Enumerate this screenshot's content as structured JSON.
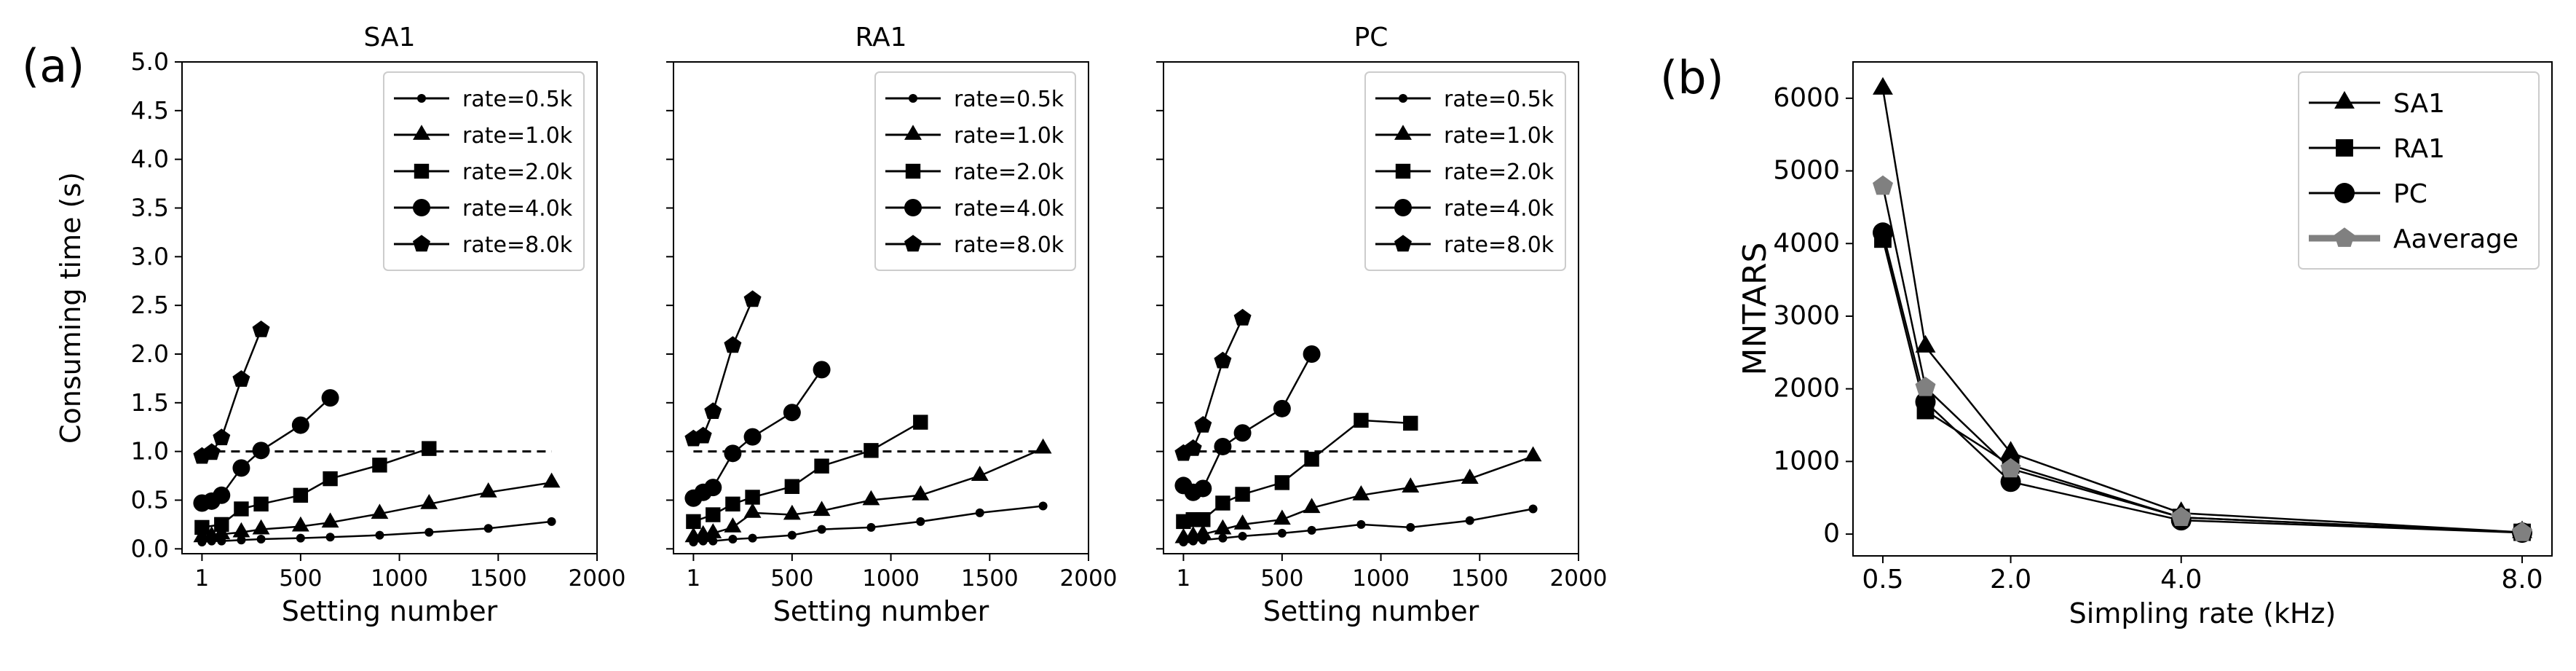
{
  "panel_labels": {
    "a": "(a)",
    "b": "(b)"
  },
  "chart_data": [
    {
      "type": "line",
      "title": "SA1",
      "xlabel": "Setting number",
      "ylabel": "Consuming  time (s)",
      "xlim": [
        -100,
        2000
      ],
      "ylim": [
        -0.05,
        5.0
      ],
      "xticks": [
        1,
        500,
        1000,
        1500,
        2000
      ],
      "yticks": [
        0.0,
        0.5,
        1.0,
        1.5,
        2.0,
        2.5,
        3.0,
        3.5,
        4.0,
        4.5,
        5.0
      ],
      "legend_position": "upper-right",
      "reference_line": {
        "y": 1.0,
        "x_range": [
          1,
          1770
        ],
        "style": "dashed"
      },
      "series": [
        {
          "name": "rate=0.5k",
          "marker": "small-dot",
          "x": [
            1,
            50,
            100,
            200,
            300,
            500,
            650,
            900,
            1150,
            1450,
            1770
          ],
          "y": [
            0.07,
            0.08,
            0.08,
            0.09,
            0.1,
            0.11,
            0.12,
            0.14,
            0.17,
            0.21,
            0.28
          ]
        },
        {
          "name": "rate=1.0k",
          "marker": "triangle",
          "x": [
            1,
            50,
            100,
            200,
            300,
            500,
            650,
            900,
            1150,
            1450,
            1770
          ],
          "y": [
            0.12,
            0.13,
            0.15,
            0.17,
            0.2,
            0.23,
            0.27,
            0.36,
            0.46,
            0.58,
            0.68
          ]
        },
        {
          "name": "rate=2.0k",
          "marker": "square",
          "x": [
            1,
            100,
            200,
            300,
            500,
            650,
            900,
            1150
          ],
          "y": [
            0.22,
            0.25,
            0.41,
            0.46,
            0.55,
            0.72,
            0.86,
            1.03
          ]
        },
        {
          "name": "rate=4.0k",
          "marker": "circle",
          "x": [
            1,
            50,
            100,
            200,
            300,
            500,
            650
          ],
          "y": [
            0.47,
            0.49,
            0.55,
            0.83,
            1.01,
            1.27,
            1.55
          ]
        },
        {
          "name": "rate=8.0k",
          "marker": "pentagon",
          "x": [
            1,
            50,
            100,
            200,
            300
          ],
          "y": [
            0.95,
            0.99,
            1.14,
            1.74,
            2.25
          ]
        }
      ]
    },
    {
      "type": "line",
      "title": "RA1",
      "xlabel": "Setting number",
      "ylabel": "",
      "xlim": [
        -100,
        2000
      ],
      "ylim": [
        -0.05,
        5.0
      ],
      "xticks": [
        1,
        500,
        1000,
        1500,
        2000
      ],
      "yticks": [
        0.0,
        0.5,
        1.0,
        1.5,
        2.0,
        2.5,
        3.0,
        3.5,
        4.0,
        4.5,
        5.0
      ],
      "legend_position": "upper-right",
      "reference_line": {
        "y": 1.0,
        "x_range": [
          1,
          1770
        ],
        "style": "dashed"
      },
      "series": [
        {
          "name": "rate=0.5k",
          "marker": "small-dot",
          "x": [
            1,
            50,
            100,
            200,
            300,
            500,
            650,
            900,
            1150,
            1450,
            1770
          ],
          "y": [
            0.07,
            0.08,
            0.08,
            0.1,
            0.11,
            0.14,
            0.2,
            0.22,
            0.28,
            0.37,
            0.44
          ]
        },
        {
          "name": "rate=1.0k",
          "marker": "triangle",
          "x": [
            1,
            50,
            100,
            200,
            300,
            500,
            650,
            900,
            1150,
            1450,
            1770
          ],
          "y": [
            0.12,
            0.14,
            0.16,
            0.22,
            0.37,
            0.35,
            0.39,
            0.5,
            0.55,
            0.75,
            1.03
          ]
        },
        {
          "name": "rate=2.0k",
          "marker": "square",
          "x": [
            1,
            100,
            200,
            300,
            500,
            650,
            900,
            1150
          ],
          "y": [
            0.28,
            0.35,
            0.46,
            0.53,
            0.64,
            0.85,
            1.01,
            1.3
          ]
        },
        {
          "name": "rate=4.0k",
          "marker": "circle",
          "x": [
            1,
            50,
            100,
            200,
            300,
            500,
            650
          ],
          "y": [
            0.52,
            0.58,
            0.63,
            0.98,
            1.15,
            1.4,
            1.84
          ]
        },
        {
          "name": "rate=8.0k",
          "marker": "pentagon",
          "x": [
            1,
            50,
            100,
            200,
            300
          ],
          "y": [
            1.13,
            1.16,
            1.41,
            2.09,
            2.56
          ]
        }
      ]
    },
    {
      "type": "line",
      "title": "PC",
      "xlabel": "Setting number",
      "ylabel": "",
      "xlim": [
        -100,
        2000
      ],
      "ylim": [
        -0.05,
        5.0
      ],
      "xticks": [
        1,
        500,
        1000,
        1500,
        2000
      ],
      "yticks": [
        0.0,
        0.5,
        1.0,
        1.5,
        2.0,
        2.5,
        3.0,
        3.5,
        4.0,
        4.5,
        5.0
      ],
      "legend_position": "upper-right",
      "reference_line": {
        "y": 1.0,
        "x_range": [
          1,
          1770
        ],
        "style": "dashed"
      },
      "series": [
        {
          "name": "rate=0.5k",
          "marker": "small-dot",
          "x": [
            1,
            50,
            100,
            200,
            300,
            500,
            650,
            900,
            1150,
            1450,
            1770
          ],
          "y": [
            0.07,
            0.08,
            0.09,
            0.11,
            0.13,
            0.16,
            0.19,
            0.25,
            0.22,
            0.29,
            0.41
          ]
        },
        {
          "name": "rate=1.0k",
          "marker": "triangle",
          "x": [
            1,
            50,
            100,
            200,
            300,
            500,
            650,
            900,
            1150,
            1450,
            1770
          ],
          "y": [
            0.11,
            0.13,
            0.15,
            0.2,
            0.25,
            0.3,
            0.42,
            0.55,
            0.63,
            0.72,
            0.95
          ]
        },
        {
          "name": "rate=2.0k",
          "marker": "square",
          "x": [
            1,
            50,
            100,
            200,
            300,
            500,
            650,
            900,
            1150
          ],
          "y": [
            0.28,
            0.3,
            0.3,
            0.47,
            0.56,
            0.68,
            0.92,
            1.32,
            1.29
          ]
        },
        {
          "name": "rate=4.0k",
          "marker": "circle",
          "x": [
            1,
            50,
            100,
            200,
            300,
            500,
            650
          ],
          "y": [
            0.65,
            0.58,
            0.62,
            1.05,
            1.19,
            1.44,
            2.0
          ]
        },
        {
          "name": "rate=8.0k",
          "marker": "pentagon",
          "x": [
            1,
            50,
            100,
            200,
            300
          ],
          "y": [
            0.98,
            1.03,
            1.27,
            1.93,
            2.37
          ]
        }
      ]
    },
    {
      "type": "line",
      "title": "",
      "xlabel": "Simpling rate (kHz)",
      "ylabel": "MNTARS",
      "xlim": [
        0.15,
        8.35
      ],
      "ylim": [
        -300,
        6500
      ],
      "xticks": [
        0.5,
        2.0,
        4.0,
        8.0
      ],
      "xtick_labels": [
        "0.5",
        "2.0",
        "4.0",
        "8.0"
      ],
      "yticks": [
        0,
        1000,
        2000,
        3000,
        4000,
        5000,
        6000
      ],
      "legend_position": "upper-right",
      "series": [
        {
          "name": "SA1",
          "marker": "triangle",
          "color": "#000000",
          "x": [
            0.5,
            1.0,
            2.0,
            4.0,
            8.0
          ],
          "y": [
            6130,
            2580,
            1120,
            290,
            25
          ]
        },
        {
          "name": "RA1",
          "marker": "square",
          "color": "#000000",
          "x": [
            0.5,
            1.0,
            2.0,
            4.0,
            8.0
          ],
          "y": [
            4060,
            1700,
            950,
            230,
            25
          ]
        },
        {
          "name": "PC",
          "marker": "circle",
          "color": "#000000",
          "x": [
            0.5,
            1.0,
            2.0,
            4.0,
            8.0
          ],
          "y": [
            4150,
            1820,
            720,
            190,
            20
          ]
        },
        {
          "name": "Aaverage",
          "marker": "pentagon",
          "color": "#808080",
          "x": [
            0.5,
            1.0,
            2.0,
            4.0,
            8.0
          ],
          "y": [
            4790,
            2020,
            900,
            230,
            22
          ]
        }
      ]
    }
  ]
}
